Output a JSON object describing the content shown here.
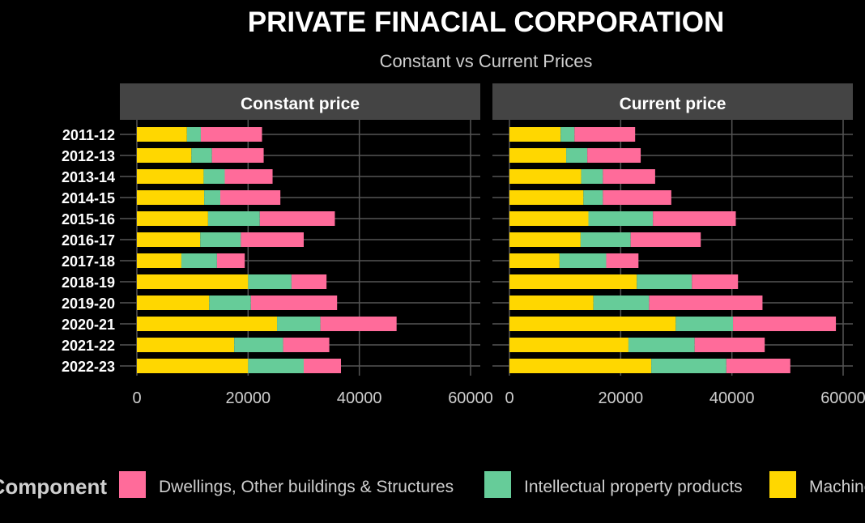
{
  "chart_data": {
    "type": "bar",
    "orientation": "horizontal",
    "stacked": true,
    "title": "PRIVATE FINACIAL CORPORATION",
    "subtitle": "Constant vs Current Prices",
    "categories": [
      "2011-12",
      "2012-13",
      "2013-14",
      "2014-15",
      "2015-16",
      "2016-17",
      "2017-18",
      "2018-19",
      "2019-20",
      "2020-21",
      "2021-22",
      "2022-23"
    ],
    "xlim": [
      0,
      60000
    ],
    "xticks": [
      "0",
      "20000",
      "40000",
      "60000"
    ],
    "grid": true,
    "legend": {
      "title": "Component",
      "position": "bottom",
      "labels": [
        "Dwellings, Other buildings & Structures",
        "Intellectual property products",
        "Machinery & Equipment"
      ]
    },
    "colors": {
      "Dwellings, Other buildings & Structures": "#FF6B9A",
      "Intellectual property products": "#66CC99",
      "Machinery & Equipment": "#FFD700",
      "background": "#000000",
      "strip": "#444444",
      "grid": "#555555"
    },
    "facets": [
      {
        "name": "Constant price",
        "series": [
          {
            "name": "Machinery & Equipment",
            "values": [
              9000,
              9800,
              12000,
              12100,
              12800,
              11400,
              8000,
              20000,
              13000,
              25200,
              17500,
              20000
            ]
          },
          {
            "name": "Intellectual property products",
            "values": [
              2500,
              3700,
              3800,
              2900,
              9300,
              7300,
              6400,
              7800,
              7500,
              7800,
              8800,
              10000
            ]
          },
          {
            "name": "Dwellings, Other buildings & Structures",
            "values": [
              11000,
              9300,
              8600,
              10800,
              13500,
              11300,
              5000,
              6300,
              15500,
              13700,
              8300,
              6700
            ]
          }
        ]
      },
      {
        "name": "Current price",
        "series": [
          {
            "name": "Machinery & Equipment",
            "values": [
              9200,
              10200,
              12900,
              13300,
              14200,
              12800,
              9000,
              22900,
              15100,
              29900,
              21400,
              25500
            ]
          },
          {
            "name": "Intellectual property products",
            "values": [
              2500,
              3800,
              3900,
              3500,
              11600,
              9000,
              8400,
              9900,
              10000,
              10300,
              11900,
              13500
            ]
          },
          {
            "name": "Dwellings, Other buildings & Structures",
            "values": [
              10900,
              9600,
              9400,
              12300,
              14900,
              12600,
              5800,
              8300,
              20400,
              18500,
              12600,
              11500
            ]
          }
        ]
      }
    ]
  }
}
